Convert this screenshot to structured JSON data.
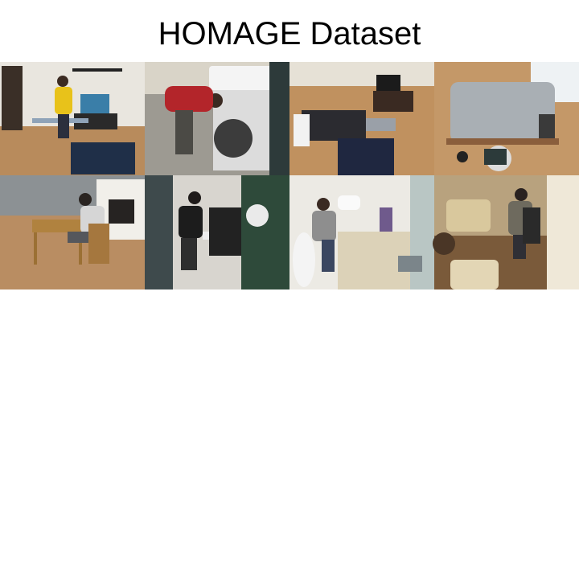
{
  "title": "HOMAGE Dataset"
}
